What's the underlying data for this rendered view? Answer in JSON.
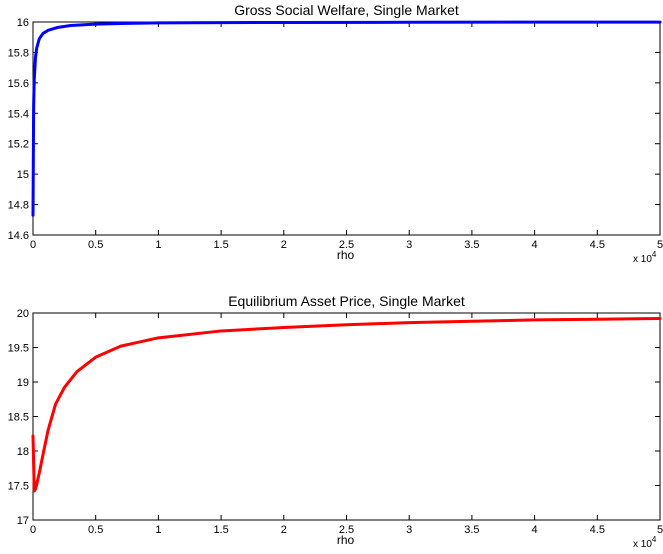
{
  "chart_data": [
    {
      "type": "line",
      "title": "Gross Social Welfare, Single Market",
      "xlabel": "rho",
      "x_exponent_label": "x 10",
      "x_exponent_power": "4",
      "ylabel": "",
      "xlim": [
        0,
        5
      ],
      "ylim": [
        14.6,
        16
      ],
      "x_ticks": [
        "0",
        "0.5",
        "1",
        "1.5",
        "2",
        "2.5",
        "3",
        "3.5",
        "4",
        "4.5",
        "5"
      ],
      "y_ticks": [
        "14.6",
        "14.8",
        "15",
        "15.2",
        "15.4",
        "15.6",
        "15.8",
        "16"
      ],
      "color": "#0000ff",
      "x": [
        0.0,
        0.005,
        0.01,
        0.02,
        0.03,
        0.05,
        0.08,
        0.12,
        0.2,
        0.3,
        0.5,
        0.75,
        1.0,
        1.5,
        2.0,
        3.0,
        4.0,
        5.0
      ],
      "y": [
        14.73,
        15.45,
        15.62,
        15.77,
        15.83,
        15.89,
        15.925,
        15.945,
        15.965,
        15.977,
        15.986,
        15.991,
        15.994,
        15.996,
        15.997,
        15.998,
        15.999,
        15.999
      ]
    },
    {
      "type": "line",
      "title": "Equilibrium Asset Price, Single Market",
      "xlabel": "rho",
      "x_exponent_label": "x 10",
      "x_exponent_power": "4",
      "ylabel": "",
      "xlim": [
        0,
        5
      ],
      "ylim": [
        17,
        20
      ],
      "x_ticks": [
        "0",
        "0.5",
        "1",
        "1.5",
        "2",
        "2.5",
        "3",
        "3.5",
        "4",
        "4.5",
        "5"
      ],
      "y_ticks": [
        "17",
        "17.5",
        "18",
        "18.5",
        "19",
        "19.5",
        "20"
      ],
      "color": "#ff0000",
      "x": [
        0.0,
        0.01,
        0.02,
        0.03,
        0.05,
        0.08,
        0.12,
        0.18,
        0.25,
        0.35,
        0.5,
        0.7,
        1.0,
        1.5,
        2.0,
        2.5,
        3.0,
        3.5,
        4.0,
        4.5,
        5.0
      ],
      "y": [
        18.22,
        17.42,
        17.45,
        17.52,
        17.68,
        17.95,
        18.3,
        18.68,
        18.92,
        19.15,
        19.36,
        19.52,
        19.64,
        19.74,
        19.79,
        19.83,
        19.86,
        19.88,
        19.9,
        19.91,
        19.92
      ]
    }
  ]
}
